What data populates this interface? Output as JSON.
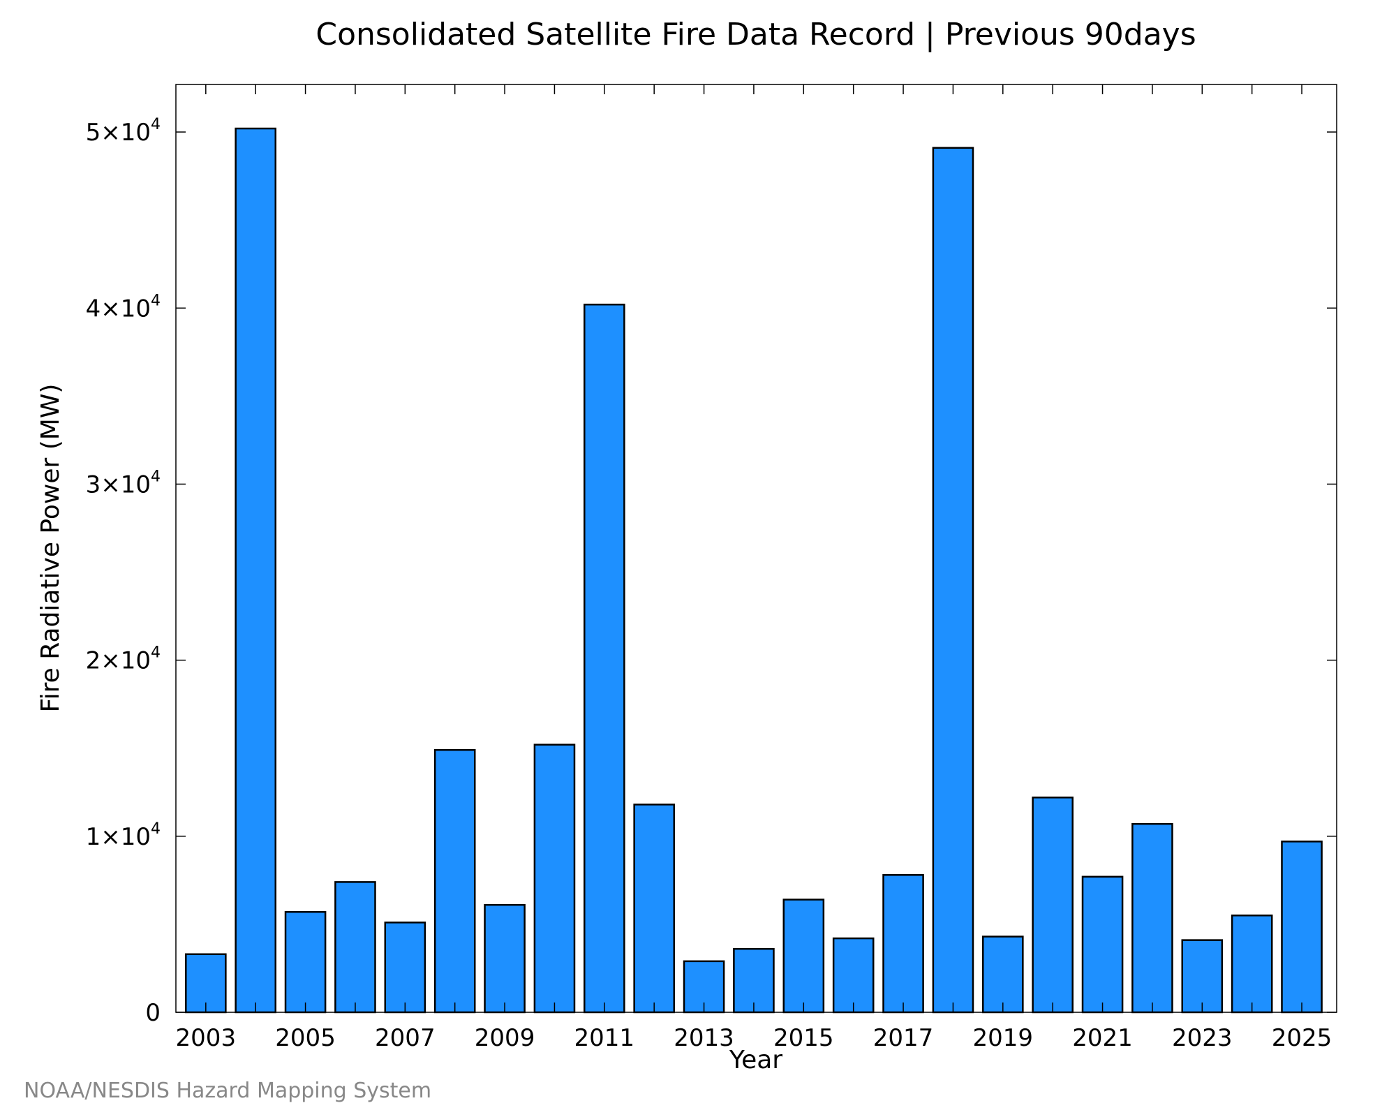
{
  "chart_data": {
    "type": "bar",
    "title": "Consolidated Satellite Fire Data Record | Previous 90days",
    "xlabel": "Year",
    "ylabel": "Fire Radiative Power (MW)",
    "categories": [
      "2003",
      "2004",
      "2005",
      "2006",
      "2007",
      "2008",
      "2009",
      "2010",
      "2011",
      "2012",
      "2013",
      "2014",
      "2015",
      "2016",
      "2017",
      "2018",
      "2019",
      "2020",
      "2021",
      "2022",
      "2023",
      "2024",
      "2025"
    ],
    "values": [
      3300,
      50200,
      5700,
      7400,
      5100,
      14900,
      6100,
      15200,
      40200,
      11800,
      2900,
      3600,
      6400,
      4200,
      7800,
      49100,
      4300,
      12200,
      7700,
      10700,
      4100,
      5500,
      9700
    ],
    "x_tick_labels": [
      "2003",
      "2005",
      "2007",
      "2009",
      "2011",
      "2013",
      "2015",
      "2017",
      "2019",
      "2021",
      "2023",
      "2025"
    ],
    "y_ticks": [
      0,
      10000,
      20000,
      30000,
      40000,
      50000
    ],
    "y_tick_labels": [
      {
        "mantissa": "0",
        "exponent": ""
      },
      {
        "mantissa": "1×10",
        "exponent": "4"
      },
      {
        "mantissa": "2×10",
        "exponent": "4"
      },
      {
        "mantissa": "3×10",
        "exponent": "4"
      },
      {
        "mantissa": "4×10",
        "exponent": "4"
      },
      {
        "mantissa": "5×10",
        "exponent": "4"
      }
    ],
    "ylim": [
      0,
      52700
    ],
    "xlim": [
      2002.4,
      2025.7
    ],
    "grid": false,
    "legend": "none",
    "bar_color": "#1e90ff",
    "bar_edge_color": "#000000"
  },
  "footer": {
    "credit": "NOAA/NESDIS Hazard Mapping System"
  }
}
